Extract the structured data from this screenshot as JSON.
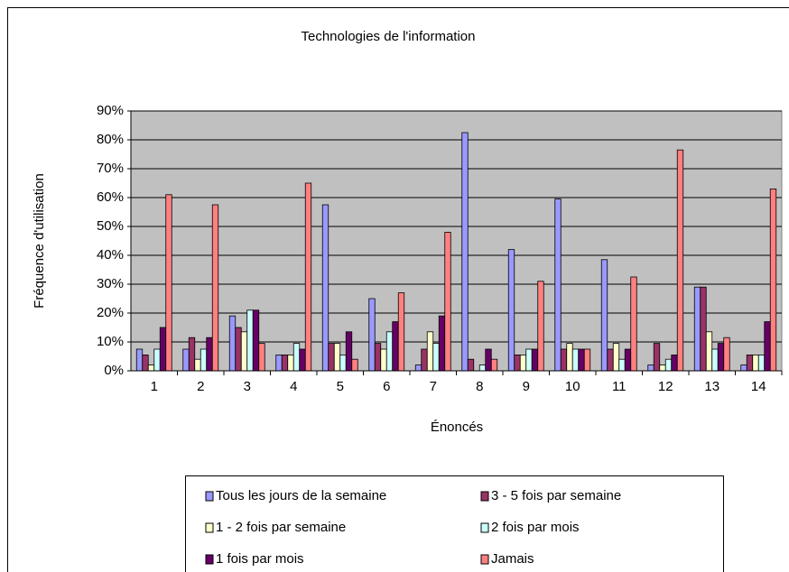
{
  "chart_data": {
    "type": "bar",
    "title": "Technologies de l'information",
    "x_label": "Énoncés",
    "y_label": "Fréquence d'utilisation",
    "categories": [
      "1",
      "2",
      "3",
      "4",
      "5",
      "6",
      "7",
      "8",
      "9",
      "10",
      "11",
      "12",
      "13",
      "14"
    ],
    "series": [
      {
        "name": "Tous les jours de la semaine",
        "color": "#9999ff",
        "values": [
          7.5,
          7.5,
          19,
          5.5,
          57.5,
          25,
          2,
          82.5,
          42,
          59.5,
          38.5,
          2,
          29,
          2
        ]
      },
      {
        "name": "3 - 5 fois par semaine",
        "color": "#993366",
        "values": [
          5.5,
          11.5,
          15,
          5.5,
          9.5,
          9.5,
          7.5,
          4,
          5.5,
          7.5,
          7.5,
          9.5,
          29,
          5.5
        ]
      },
      {
        "name": "1 - 2 fois par semaine",
        "color": "#ffffcc",
        "values": [
          2,
          4,
          13.5,
          5.5,
          9.5,
          7.5,
          13.5,
          0,
          5.5,
          9.5,
          9.5,
          2,
          13.5,
          5.5
        ]
      },
      {
        "name": "2 fois par mois",
        "color": "#ccffff",
        "values": [
          7.5,
          7.5,
          21,
          9.5,
          5.5,
          13.5,
          9.5,
          2,
          7.5,
          7.5,
          4,
          4,
          7.5,
          5.5
        ]
      },
      {
        "name": "1 fois par mois",
        "color": "#660066",
        "values": [
          15,
          11.5,
          21,
          7.5,
          13.5,
          17,
          19,
          7.5,
          7.5,
          7.5,
          7.5,
          5.5,
          9.5,
          17
        ]
      },
      {
        "name": "Jamais",
        "color": "#ff8080",
        "values": [
          61,
          57.5,
          9.5,
          65,
          4,
          27,
          48,
          4,
          31,
          7.5,
          32.5,
          76.5,
          11.5,
          63
        ]
      }
    ],
    "ylim": [
      0,
      90
    ],
    "yticks": [
      {
        "value": 0,
        "label": "0%"
      },
      {
        "value": 10,
        "label": "10%"
      },
      {
        "value": 20,
        "label": "20%"
      },
      {
        "value": 30,
        "label": "30%"
      },
      {
        "value": 40,
        "label": "40%"
      },
      {
        "value": 50,
        "label": "50%"
      },
      {
        "value": 60,
        "label": "60%"
      },
      {
        "value": 70,
        "label": "70%"
      },
      {
        "value": 80,
        "label": "80%"
      },
      {
        "value": 90,
        "label": "90%"
      }
    ],
    "grid": true,
    "plot_background": "#c0c0c0",
    "legend": "bottom"
  }
}
